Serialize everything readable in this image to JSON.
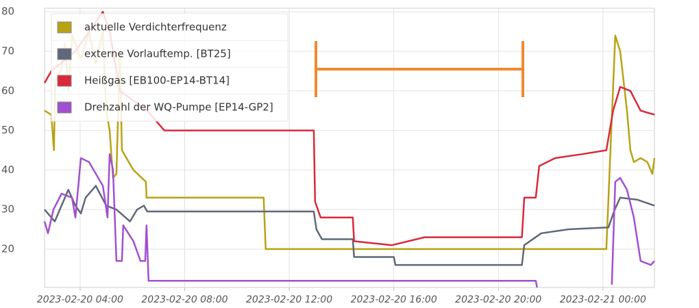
{
  "chart_data": {
    "type": "line",
    "xlim": [
      2.64,
      25.97
    ],
    "xticks": [
      {
        "value": 4,
        "label": "2023-02-20 04:00"
      },
      {
        "value": 8,
        "label": "2023-02-20 08:00"
      },
      {
        "value": 12,
        "label": "2023-02-20 12:00"
      },
      {
        "value": 16,
        "label": "2023-02-20 16:00"
      },
      {
        "value": 20,
        "label": "2023-02-20 20:00"
      },
      {
        "value": 24,
        "label": "2023-02-21 00:00"
      }
    ],
    "ylim": [
      10.3,
      80.9
    ],
    "yticks": [
      20,
      30,
      40,
      50,
      60,
      70,
      80
    ],
    "grid": true,
    "legend": "upper left",
    "series": [
      {
        "name": "aktuelle Verdichterfrequenz",
        "color": "#b8a214",
        "x": [
          2.64,
          2.9,
          3.0,
          3.05,
          3.3,
          3.42,
          3.55,
          3.69,
          3.82,
          4.03,
          4.34,
          4.6,
          4.87,
          5.0,
          5.13,
          5.26,
          5.39,
          5.52,
          5.6,
          6.04,
          6.52,
          6.54,
          11.02,
          11.1,
          24.13,
          24.47,
          24.66,
          24.92,
          25.05,
          25.18,
          25.44,
          25.7,
          25.89,
          25.97
        ],
        "values": [
          55,
          54,
          45,
          62,
          66,
          72,
          60,
          74,
          72,
          68,
          75,
          67,
          75,
          55,
          50,
          38,
          39,
          70,
          45,
          40,
          37,
          33,
          33,
          20,
          20,
          74,
          70,
          55,
          45,
          42,
          43,
          42,
          39,
          43
        ]
      },
      {
        "name": "externe Vorlauftemp. [BT25]",
        "color": "#5f6878",
        "x": [
          2.64,
          3.03,
          3.42,
          3.55,
          3.82,
          4.03,
          4.21,
          4.6,
          5.0,
          5.39,
          5.91,
          6.18,
          6.44,
          6.57,
          12.94,
          13.04,
          13.25,
          14.43,
          14.48,
          16.0,
          16.06,
          20.9,
          20.99,
          21.64,
          22.69,
          24.21,
          24.45,
          24.66,
          25.31,
          25.97
        ],
        "values": [
          30,
          27,
          33,
          35,
          31,
          29,
          33,
          36,
          31,
          30,
          27,
          30,
          31,
          29.5,
          29.5,
          25,
          22.5,
          22.5,
          18,
          18,
          16,
          16,
          21,
          24,
          25,
          25.5,
          30,
          33,
          32.5,
          31
        ]
      },
      {
        "name": "Heißgas [EB100-EP14-BT14]",
        "color": "#d8283a",
        "x": [
          2.64,
          2.9,
          3.82,
          4.87,
          5.13,
          5.52,
          6.57,
          7.22,
          12.94,
          12.99,
          13.2,
          14.43,
          14.48,
          15.93,
          17.18,
          20.9,
          20.99,
          21.43,
          21.56,
          22.17,
          23.21,
          24.13,
          24.39,
          24.66,
          25.05,
          25.44,
          25.97
        ],
        "values": [
          62,
          65,
          70,
          80,
          75,
          60,
          55,
          50,
          50,
          32,
          28,
          28,
          22,
          21,
          23,
          23,
          33,
          33,
          41,
          43,
          44,
          45,
          55,
          61,
          60,
          55,
          54
        ]
      },
      {
        "name": "Drehzahl der WQ-Pumpe [EP14-GP2]",
        "color": "#a050d0",
        "x": [
          2.64,
          2.77,
          2.98,
          3.29,
          3.69,
          3.82,
          4.03,
          4.34,
          4.87,
          5.05,
          5.13,
          5.26,
          5.39,
          5.6,
          5.65,
          6.04,
          6.31,
          6.49,
          6.54,
          6.62,
          21.43,
          21.48,
          23.0,
          24.34,
          24.47,
          24.66,
          24.92,
          25.18,
          25.44,
          25.83,
          25.97
        ],
        "values": [
          27,
          24,
          30,
          34,
          33,
          28,
          43,
          42,
          36,
          28,
          44,
          40,
          17,
          17,
          26,
          22,
          17,
          17,
          26,
          12,
          12,
          10.3,
          null,
          11,
          37,
          38,
          35,
          28,
          17,
          16,
          17
        ]
      }
    ]
  }
}
